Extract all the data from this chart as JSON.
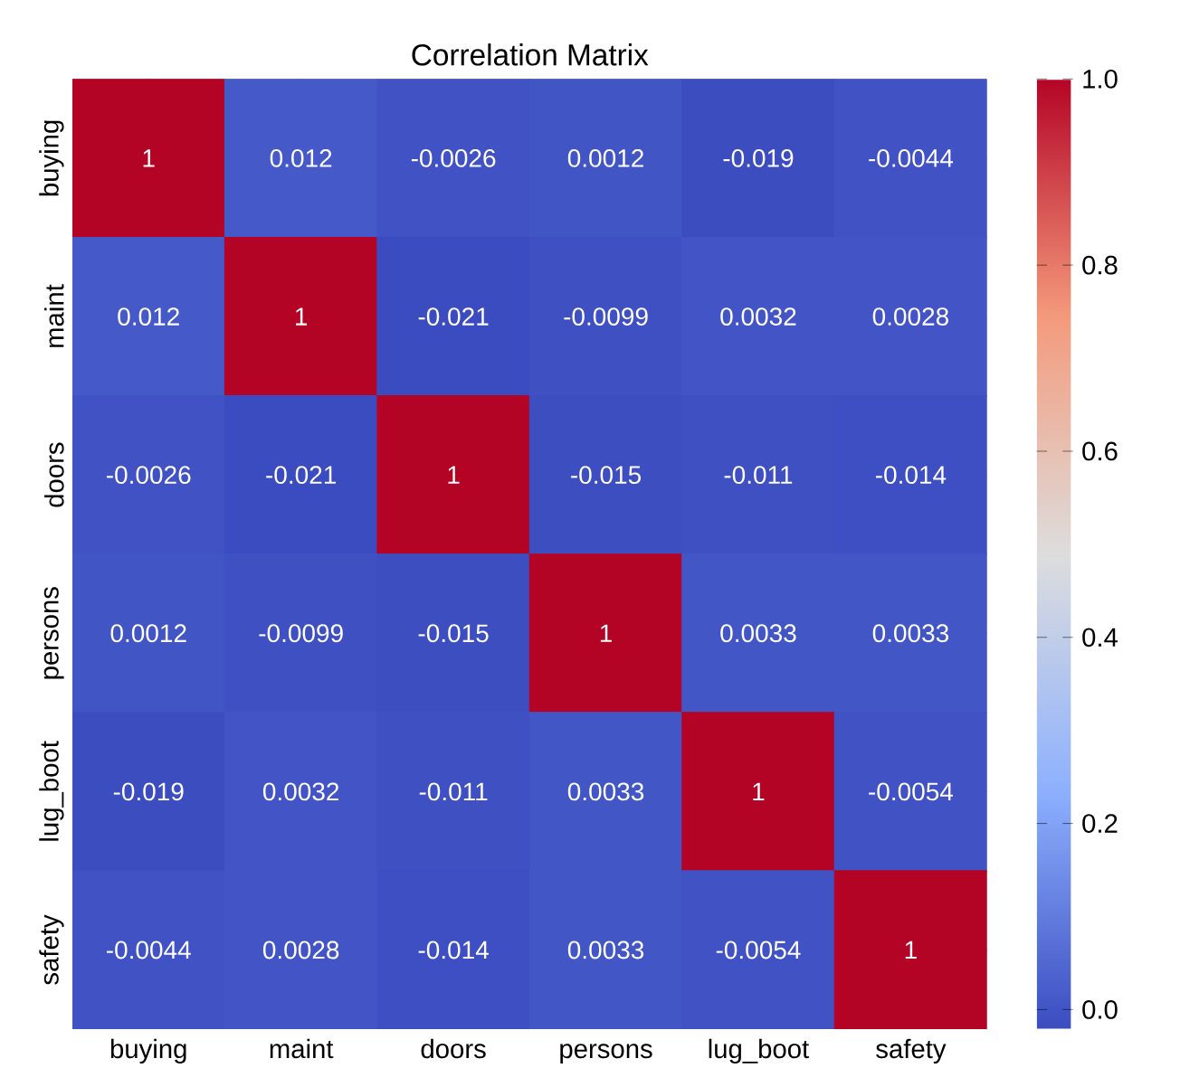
{
  "chart_data": {
    "type": "heatmap",
    "title": "Correlation Matrix",
    "categories": [
      "buying",
      "maint",
      "doors",
      "persons",
      "lug_boot",
      "safety"
    ],
    "y_categories": [
      "buying",
      "maint",
      "doors",
      "persons",
      "lug_boot",
      "safety"
    ],
    "cells": [
      [
        1,
        0.012,
        -0.0026,
        0.0012,
        -0.019,
        -0.0044
      ],
      [
        0.012,
        1,
        -0.021,
        -0.0099,
        0.0032,
        0.0028
      ],
      [
        -0.0026,
        -0.021,
        1,
        -0.015,
        -0.011,
        -0.014
      ],
      [
        0.0012,
        -0.0099,
        -0.015,
        1,
        0.0033,
        0.0033
      ],
      [
        -0.019,
        0.0032,
        -0.011,
        0.0033,
        1,
        -0.0054
      ],
      [
        -0.0044,
        0.0028,
        -0.014,
        0.0033,
        -0.0054,
        1
      ]
    ],
    "data_labels": true,
    "cticks": [
      {
        "value": 0,
        "label": "0.0"
      },
      {
        "value": 0.2,
        "label": "0.2"
      },
      {
        "value": 0.4,
        "label": "0.4"
      },
      {
        "value": 0.6,
        "label": "0.6"
      },
      {
        "value": 0.8,
        "label": "0.8"
      },
      {
        "value": 1,
        "label": "1.0"
      }
    ]
  }
}
